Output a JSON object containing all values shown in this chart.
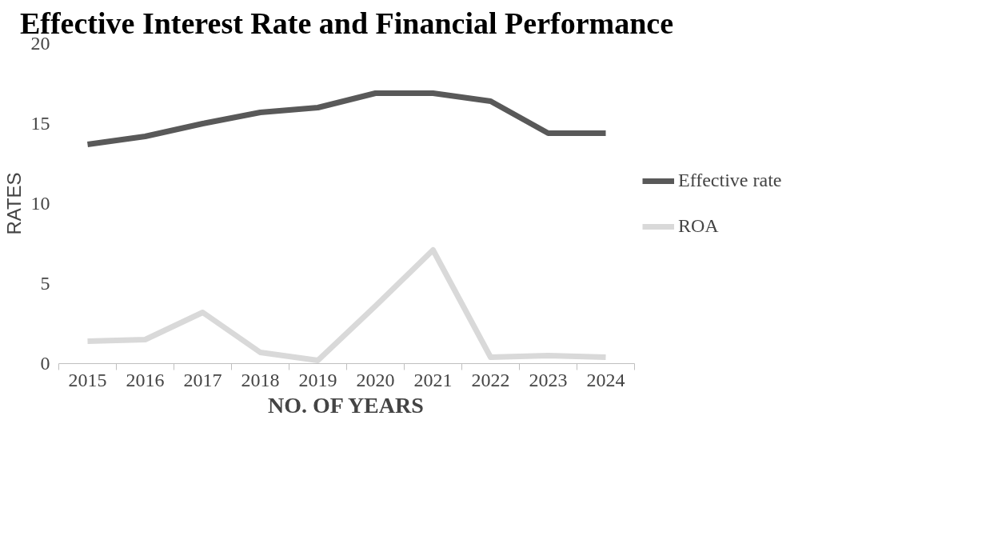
{
  "chart_data": {
    "type": "line",
    "title": "Effective Interest Rate and Financial Performance",
    "xlabel": "NO. OF YEARS",
    "ylabel": "RATES",
    "categories": [
      "2015",
      "2016",
      "2017",
      "2018",
      "2019",
      "2020",
      "2021",
      "2022",
      "2023",
      "2024"
    ],
    "series": [
      {
        "name": "Effective rate",
        "color": "#595959",
        "values": [
          13.7,
          14.2,
          15.0,
          15.7,
          16.0,
          16.9,
          16.9,
          16.4,
          14.4,
          14.4
        ]
      },
      {
        "name": "ROA",
        "color": "#d9d9d9",
        "values": [
          1.4,
          1.5,
          3.2,
          0.7,
          0.2,
          3.6,
          7.1,
          0.4,
          0.5,
          0.4
        ]
      }
    ],
    "ylim": [
      0,
      20
    ],
    "yticks": [
      0,
      5,
      10,
      15,
      20
    ],
    "grid": false,
    "legend": "right",
    "marker": "none",
    "line_style": "solid"
  }
}
